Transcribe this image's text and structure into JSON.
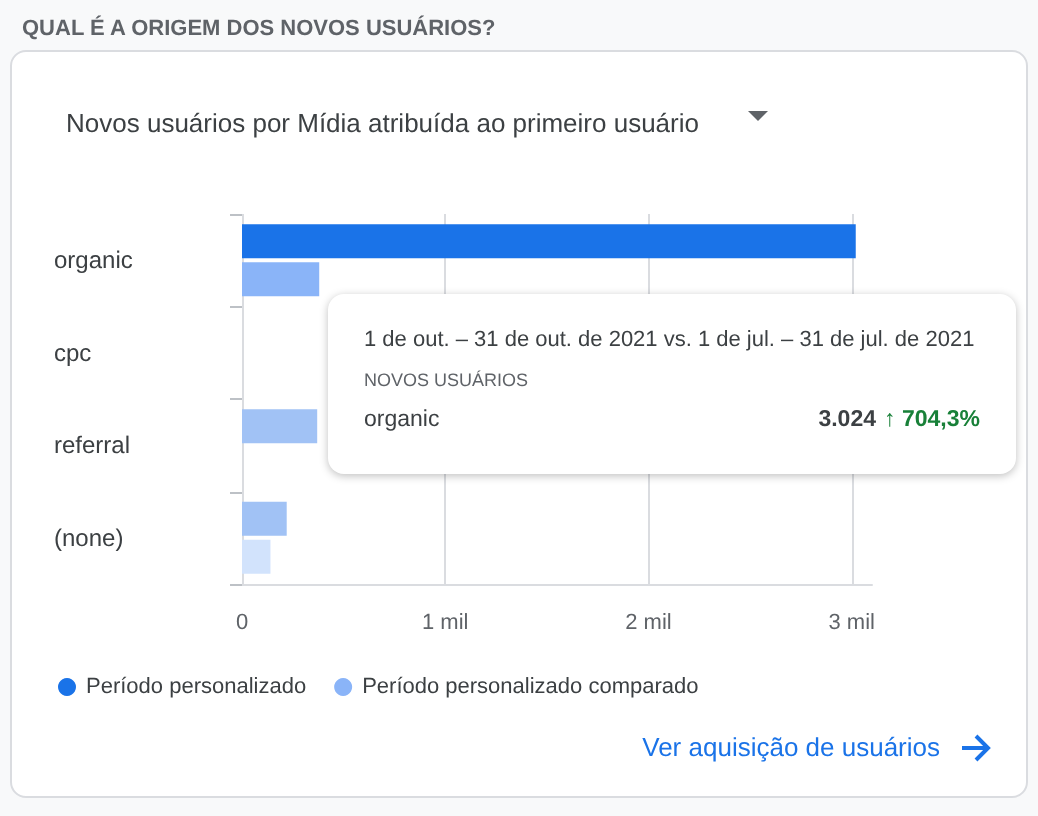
{
  "chart_data": {
    "type": "bar",
    "orientation": "horizontal",
    "title": "QUAL É A ORIGEM DOS NOVOS USUÁRIOS?",
    "subtitle": "Novos usuários por Mídia atribuída ao primeiro usuário",
    "categories": [
      "organic",
      "cpc",
      "referral",
      "(none)"
    ],
    "series": [
      {
        "name": "Período personalizado",
        "color": "#1a73e8",
        "colors": [
          "#1a73e8",
          "#a1c2f5",
          "#a1c2f5",
          "#a1c2f5"
        ],
        "values": [
          3.02,
          null,
          0.37,
          0.22
        ]
      },
      {
        "name": "Período personalizado comparado",
        "color": "#8ab4f8",
        "colors": [
          "#8ab4f8",
          "#d2e3fc",
          "#d2e3fc",
          "#d2e3fc"
        ],
        "values": [
          0.38,
          null,
          null,
          0.14
        ]
      }
    ],
    "xlim": [
      0,
      3.1
    ],
    "xticks": [
      0,
      {
        "value": 1,
        "label": "1 mil"
      },
      {
        "value": 2,
        "label": "2 mil"
      },
      {
        "value": 3,
        "label": "3 mil"
      }
    ],
    "grid": "x",
    "legend": "bottom left",
    "annotations": [
      "1 de out. – 31 de out. de 2021 vs. 1 de jul. – 31 de jul. de 2021",
      "NOVOS USUÁRIOS",
      "organic",
      "3.024",
      "↑ 704,3%",
      "Ver aquisição de usuários"
    ]
  }
}
